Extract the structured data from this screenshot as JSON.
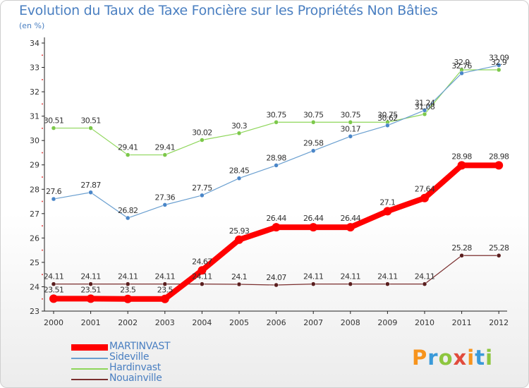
{
  "title": "Evolution du Taux de Taxe Foncière sur les Propriétés Non Bâties",
  "unit_label": "(en %)",
  "brand": {
    "text": "Proxiti",
    "letters": [
      {
        "ch": "P",
        "color": "#f7941d"
      },
      {
        "ch": "r",
        "color": "#3a9ad9"
      },
      {
        "ch": "o",
        "color": "#8dc63f"
      },
      {
        "ch": "x",
        "color": "#e14b3c"
      },
      {
        "ch": "i",
        "color": "#f7941d"
      },
      {
        "ch": "t",
        "color": "#3a9ad9"
      },
      {
        "ch": "i",
        "color": "#8dc63f"
      }
    ]
  },
  "chart_data": {
    "type": "line",
    "title": "Evolution du Taux de Taxe Foncière sur les Propriétés Non Bâties",
    "ylabel": "(en %)",
    "xlabel": "",
    "x": [
      2000,
      2001,
      2002,
      2003,
      2004,
      2005,
      2006,
      2007,
      2008,
      2009,
      2010,
      2011,
      2012
    ],
    "ylim": [
      23,
      34
    ],
    "yticks": [
      23,
      24,
      25,
      26,
      27,
      28,
      29,
      30,
      31,
      32,
      33,
      34
    ],
    "grid": false,
    "legend": "bottom-left",
    "series": [
      {
        "name": "MARTINVAST",
        "color": "#ff0000",
        "values": [
          23.51,
          23.51,
          23.5,
          23.5,
          24.67,
          25.93,
          26.44,
          26.44,
          26.44,
          27.1,
          27.64,
          28.98,
          28.98
        ],
        "labels": [
          "23.51",
          "23.51",
          "23.5",
          "23.5",
          "24.67",
          "25.93",
          "26.44",
          "26.44",
          "26.44",
          "27.1",
          "27.64",
          "28.98",
          "28.98"
        ]
      },
      {
        "name": "Sideville",
        "color": "#6a9fd0",
        "values": [
          27.6,
          27.87,
          26.82,
          27.36,
          27.75,
          28.45,
          28.98,
          29.58,
          30.17,
          30.62,
          31.24,
          32.76,
          33.09
        ],
        "labels": [
          "27.6",
          "27.87",
          "26.82",
          "27.36",
          "27.75",
          "28.45",
          "28.98",
          "29.58",
          "30.17",
          "30.62",
          "31.24",
          "32.76",
          "33.09"
        ]
      },
      {
        "name": "Hardinvast",
        "color": "#8ed65a",
        "values": [
          30.51,
          30.51,
          29.41,
          29.41,
          30.02,
          30.3,
          30.75,
          30.75,
          30.75,
          30.75,
          31.08,
          32.9,
          32.9
        ],
        "labels": [
          "30.51",
          "30.51",
          "29.41",
          "29.41",
          "30.02",
          "30.3",
          "30.75",
          "30.75",
          "30.75",
          "30.75",
          "31.08",
          "32.9",
          "32.9"
        ]
      },
      {
        "name": "Nouainville",
        "color": "#7a2e2e",
        "values": [
          24.11,
          24.11,
          24.11,
          24.11,
          24.11,
          24.1,
          24.07,
          24.11,
          24.11,
          24.11,
          24.11,
          25.28,
          25.28
        ],
        "labels": [
          "24.11",
          "24.11",
          "24.11",
          "24.11",
          "24.11",
          "24.1",
          "24.07",
          "24.11",
          "24.11",
          "24.11",
          "24.11",
          "25.28",
          "25.28"
        ]
      }
    ]
  }
}
